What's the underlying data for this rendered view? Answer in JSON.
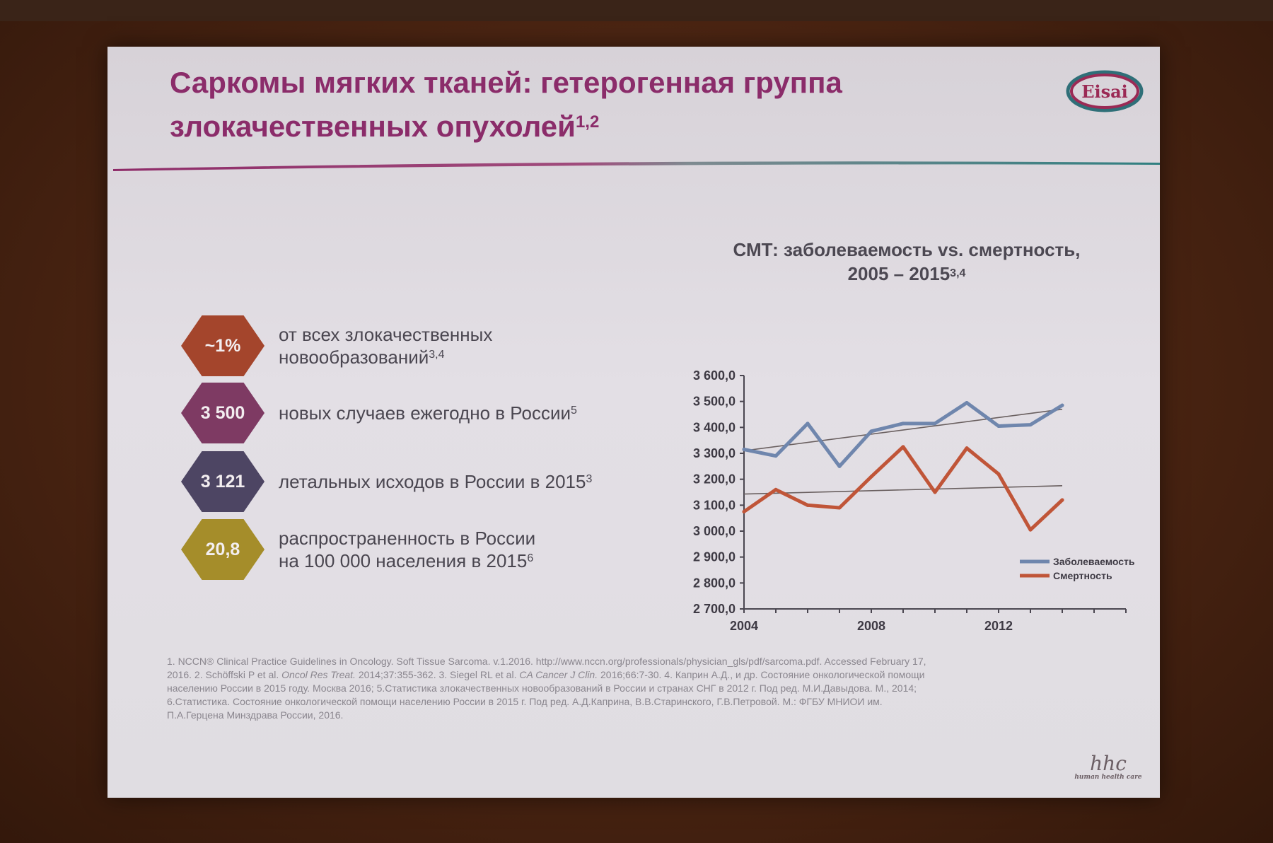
{
  "slide": {
    "title_line1": "Саркомы мягких тканей: гетерогенная группа",
    "title_line2": "злокачественных опухолей",
    "title_sup": "1,2",
    "logo_text": "Eisai"
  },
  "stats": [
    {
      "value": "~1%",
      "text_line1": "от всех злокачественных",
      "text_line2": "новообразований",
      "sup": "3,4",
      "color": "#a4452c"
    },
    {
      "value": "3 500",
      "text_line1": "новых случаев ежегодно в России",
      "text_line2": "",
      "sup": "5",
      "color": "#7e3a63"
    },
    {
      "value": "3 121",
      "text_line1": "летальных исходов в России в 2015",
      "text_line2": "",
      "sup": "3",
      "color": "#4d4563"
    },
    {
      "value": "20,8",
      "text_line1": "распространенность в России",
      "text_line2": "на 100 000 населения в 2015",
      "sup": "6",
      "color": "#a58d2a"
    }
  ],
  "chart_title": {
    "line1": "СМТ: заболеваемость vs. смертность,",
    "line2": "2005 – 2015",
    "sup": "3,4"
  },
  "chart_data": {
    "type": "line",
    "x": [
      2004,
      2005,
      2006,
      2007,
      2008,
      2009,
      2010,
      2011,
      2012,
      2013,
      2014
    ],
    "xticks": [
      "2004",
      "2008",
      "2012"
    ],
    "yticks": [
      "3 600,0",
      "3 500,0",
      "3 400,0",
      "3 300,0",
      "3 200,0",
      "3 100,0",
      "3 000,0",
      "2 900,0",
      "2 800,0",
      "2 700,0"
    ],
    "ylim": [
      2700,
      3600
    ],
    "series": [
      {
        "name": "Заболеваемость",
        "color": "#6f86ad",
        "values": [
          3315,
          3290,
          3415,
          3250,
          3385,
          3415,
          3415,
          3495,
          3405,
          3410,
          3485
        ],
        "trend": [
          3310,
          3470
        ]
      },
      {
        "name": "Смертность",
        "color": "#c05538",
        "values": [
          3075,
          3160,
          3100,
          3090,
          3210,
          3325,
          3150,
          3320,
          3220,
          3005,
          3120
        ],
        "trend": [
          3143,
          3175
        ]
      }
    ],
    "trend_color": "#6a6060",
    "legend_position": "bottom-right"
  },
  "references": {
    "line1": "1. NCCN® Clinical Practice Guidelines in Oncology. Soft Tissue Sarcoma. v.1.2016. http://www.nccn.org/professionals/physician_gls/pdf/sarcoma.pdf. Accessed February 17,",
    "line2a": "2016. 2. Schöffski P et al. ",
    "line2b": "Oncol Res Treat.",
    "line2c": " 2014;37:355-362. 3. Siegel RL et al. ",
    "line2d": "CA Cancer J Clin.",
    "line2e": " 2016;66:7-30. 4. Каприн А.Д., и др. Состояние онкологической помощи",
    "line3": "населению России в 2015 году. Москва 2016; 5.Статистика злокачественных новообразований в России и странах СНГ в 2012 г. Под ред. М.И.Давыдова. М., 2014;",
    "line4": "6.Статистика. Состояние онкологической помощи населению России в 2015 г. Под ред. А.Д.Каприна, В.В.Старинского, Г.В.Петровой. М.: ФГБУ МНИОИ им.",
    "line5": "П.А.Герцена Минздрава России, 2016."
  },
  "footer": {
    "mark": "hhc",
    "tagline": "human health care"
  }
}
